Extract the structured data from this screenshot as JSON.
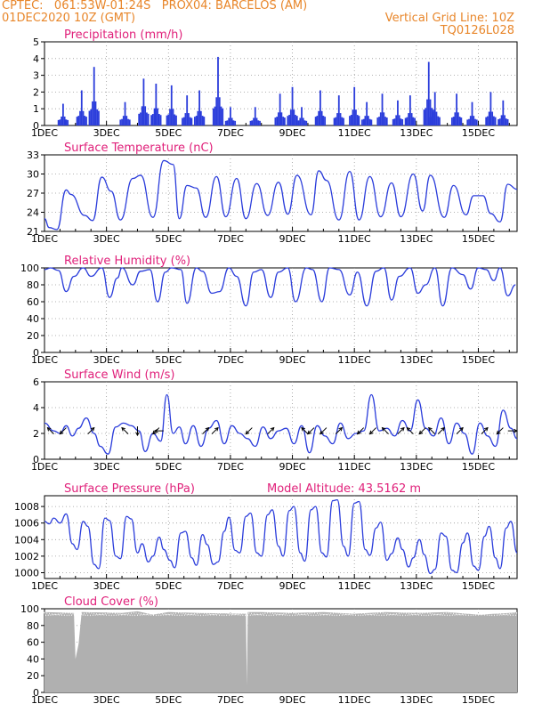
{
  "header": {
    "line1": "CPTEC:   061:53W-01:24S   PROX04: BARCELOS (AM)",
    "line2_left": "01DEC2020 10Z (GMT)",
    "line2_right": "Vertical Grid Line: 10Z",
    "line3_right": "TQ0126L028"
  },
  "colors": {
    "header": "#e8862a",
    "title": "#e0207a",
    "series": "#2b3ddb",
    "cloud": "#b0b0b0",
    "wind_arrow": "#000000"
  },
  "x_ticks": [
    "1DEC",
    "3DEC",
    "5DEC",
    "7DEC",
    "9DEC",
    "11DEC",
    "13DEC",
    "15DEC"
  ],
  "chart_data": [
    {
      "type": "bar",
      "title": "Precipitation (mm/h)",
      "ylim": [
        0,
        5
      ],
      "yticks": [
        "0",
        "1",
        "2",
        "3",
        "4",
        "5"
      ],
      "x_range_days": [
        0,
        15
      ],
      "bursts": [
        [
          0.6,
          1.3
        ],
        [
          1.2,
          2.1
        ],
        [
          1.6,
          3.5
        ],
        [
          2.6,
          1.4
        ],
        [
          3.2,
          2.8
        ],
        [
          3.6,
          2.5
        ],
        [
          4.1,
          2.4
        ],
        [
          4.6,
          1.8
        ],
        [
          5.0,
          2.1
        ],
        [
          5.6,
          4.1
        ],
        [
          6.0,
          1.1
        ],
        [
          6.8,
          1.1
        ],
        [
          7.6,
          1.9
        ],
        [
          8.0,
          2.3
        ],
        [
          8.3,
          1.1
        ],
        [
          8.9,
          2.1
        ],
        [
          9.5,
          1.8
        ],
        [
          10.0,
          2.3
        ],
        [
          10.4,
          1.4
        ],
        [
          10.9,
          1.9
        ],
        [
          11.4,
          1.5
        ],
        [
          11.8,
          1.8
        ],
        [
          12.4,
          3.8
        ],
        [
          12.6,
          2.0
        ],
        [
          13.3,
          1.9
        ],
        [
          13.8,
          1.4
        ],
        [
          14.4,
          2.0
        ],
        [
          14.8,
          1.5
        ]
      ]
    },
    {
      "type": "line",
      "title": "Surface Temperature (nC)",
      "ylim": [
        21,
        33
      ],
      "yticks": [
        "21",
        "24",
        "27",
        "30",
        "33"
      ],
      "x_days": [
        0,
        0.15,
        0.4,
        0.7,
        0.85,
        1.3,
        1.55,
        1.85,
        2.15,
        2.45,
        2.85,
        3.1,
        3.5,
        3.85,
        4.15,
        4.35,
        4.6,
        4.9,
        5.2,
        5.55,
        5.85,
        6.2,
        6.5,
        6.85,
        7.2,
        7.55,
        7.85,
        8.15,
        8.6,
        8.85,
        9.1,
        9.5,
        9.85,
        10.15,
        10.5,
        10.85,
        11.2,
        11.5,
        11.9,
        12.2,
        12.45,
        12.9,
        13.2,
        13.6,
        13.85,
        14.15,
        14.4,
        14.7,
        14.95,
        15.25
      ],
      "values": [
        23.0,
        21.6,
        21.3,
        27.5,
        26.8,
        23.5,
        22.7,
        29.5,
        27.3,
        22.8,
        29.3,
        29.8,
        23.2,
        32.1,
        31.5,
        23.0,
        28.2,
        27.8,
        23.2,
        29.6,
        23.3,
        29.3,
        23.0,
        28.5,
        23.5,
        28.7,
        23.7,
        29.8,
        23.6,
        30.5,
        29.0,
        22.8,
        30.4,
        22.8,
        29.6,
        23.3,
        28.6,
        23.3,
        30.0,
        24.2,
        29.8,
        23.2,
        28.2,
        23.6,
        26.6,
        26.6,
        23.8,
        22.5,
        28.4,
        27.6
      ]
    },
    {
      "type": "line",
      "title": "Relative Humidity (%)",
      "ylim": [
        0,
        100
      ],
      "yticks": [
        "0",
        "20",
        "40",
        "60",
        "80",
        "100"
      ],
      "x_days": [
        0,
        0.2,
        0.45,
        0.7,
        0.95,
        1.25,
        1.5,
        1.85,
        2.1,
        2.35,
        2.5,
        2.85,
        3.1,
        3.4,
        3.65,
        3.9,
        4.1,
        4.4,
        4.6,
        4.9,
        5.1,
        5.4,
        5.65,
        5.95,
        6.2,
        6.5,
        6.75,
        7.0,
        7.3,
        7.55,
        7.85,
        8.1,
        8.45,
        8.65,
        8.95,
        9.2,
        9.5,
        9.85,
        10.1,
        10.4,
        10.7,
        10.95,
        11.2,
        11.45,
        11.8,
        12.05,
        12.3,
        12.6,
        12.85,
        13.15,
        13.5,
        13.75,
        14.0,
        14.25,
        14.5,
        14.7,
        14.95,
        15.2
      ],
      "values": [
        98,
        100,
        97,
        72,
        90,
        100,
        90,
        100,
        65,
        88,
        100,
        80,
        96,
        98,
        60,
        95,
        100,
        98,
        58,
        100,
        96,
        70,
        72,
        100,
        90,
        55,
        95,
        98,
        65,
        95,
        100,
        60,
        100,
        98,
        60,
        100,
        98,
        68,
        95,
        55,
        96,
        100,
        62,
        90,
        100,
        70,
        80,
        100,
        55,
        100,
        92,
        75,
        100,
        98,
        85,
        100,
        67,
        80
      ]
    },
    {
      "type": "line",
      "title": "Surface Wind (m/s)",
      "ylim": [
        0,
        6
      ],
      "yticks": [
        "0",
        "2",
        "4",
        "6"
      ],
      "x_days": [
        0,
        0.3,
        0.5,
        0.7,
        0.9,
        1.1,
        1.35,
        1.6,
        1.8,
        2.05,
        2.3,
        2.55,
        2.8,
        3.05,
        3.25,
        3.5,
        3.75,
        3.95,
        4.15,
        4.35,
        4.55,
        4.8,
        5.05,
        5.3,
        5.55,
        5.8,
        6.05,
        6.3,
        6.55,
        6.8,
        7.05,
        7.3,
        7.55,
        7.8,
        8.05,
        8.3,
        8.55,
        8.8,
        9.05,
        9.3,
        9.55,
        9.8,
        10.05,
        10.3,
        10.55,
        10.8,
        11.05,
        11.3,
        11.55,
        11.8,
        12.05,
        12.3,
        12.55,
        12.8,
        13.05,
        13.3,
        13.55,
        13.8,
        14.05,
        14.3,
        14.55,
        14.8,
        15.05,
        15.25
      ],
      "values": [
        2.8,
        2.2,
        2.0,
        2.6,
        1.8,
        2.4,
        3.2,
        2.0,
        1.0,
        0.4,
        2.5,
        2.8,
        2.6,
        2.2,
        0.6,
        2.0,
        1.4,
        5.0,
        2.0,
        2.5,
        1.2,
        2.6,
        1.0,
        2.4,
        3.0,
        1.2,
        2.6,
        2.0,
        1.6,
        1.0,
        2.5,
        1.6,
        2.2,
        2.4,
        1.2,
        2.6,
        0.5,
        2.6,
        1.8,
        1.2,
        2.8,
        1.6,
        2.0,
        2.2,
        5.0,
        2.2,
        2.4,
        1.8,
        3.0,
        2.2,
        4.6,
        2.4,
        1.8,
        3.2,
        1.2,
        2.8,
        2.0,
        0.4,
        2.8,
        1.8,
        1.0,
        3.8,
        2.4,
        1.6
      ],
      "arrows": [
        {
          "day": 0.2,
          "dir_deg": 315
        },
        {
          "day": 0.6,
          "dir_deg": 225
        },
        {
          "day": 1.5,
          "dir_deg": 45
        },
        {
          "day": 2.6,
          "dir_deg": 315
        },
        {
          "day": 3.0,
          "dir_deg": 180
        },
        {
          "day": 3.6,
          "dir_deg": 225
        },
        {
          "day": 3.7,
          "dir_deg": 270
        },
        {
          "day": 5.2,
          "dir_deg": 45
        },
        {
          "day": 5.5,
          "dir_deg": 45
        },
        {
          "day": 6.6,
          "dir_deg": 225
        },
        {
          "day": 7.3,
          "dir_deg": 45
        },
        {
          "day": 8.4,
          "dir_deg": 315
        },
        {
          "day": 8.6,
          "dir_deg": 225
        },
        {
          "day": 9.0,
          "dir_deg": 225
        },
        {
          "day": 9.5,
          "dir_deg": 45
        },
        {
          "day": 10.2,
          "dir_deg": 225
        },
        {
          "day": 10.6,
          "dir_deg": 225
        },
        {
          "day": 11.0,
          "dir_deg": 315
        },
        {
          "day": 11.5,
          "dir_deg": 45
        },
        {
          "day": 11.8,
          "dir_deg": 315
        },
        {
          "day": 12.2,
          "dir_deg": 225
        },
        {
          "day": 12.5,
          "dir_deg": 315
        },
        {
          "day": 12.8,
          "dir_deg": 45
        },
        {
          "day": 13.4,
          "dir_deg": 45
        },
        {
          "day": 14.2,
          "dir_deg": 45
        },
        {
          "day": 14.7,
          "dir_deg": 225
        },
        {
          "day": 15.1,
          "dir_deg": 90
        }
      ]
    },
    {
      "type": "line",
      "title": "Surface Pressure (hPa)",
      "annotation": "Model Altitude:  43.5162 m",
      "ylim": [
        999.3,
        1009.3
      ],
      "yticks": [
        "1000",
        "1002",
        "1004",
        "1006",
        "1008"
      ],
      "x_days": [
        0,
        0.15,
        0.3,
        0.5,
        0.7,
        0.9,
        1.05,
        1.25,
        1.4,
        1.6,
        1.75,
        1.95,
        2.1,
        2.3,
        2.45,
        2.65,
        2.8,
        3.0,
        3.15,
        3.35,
        3.5,
        3.7,
        3.85,
        4.05,
        4.2,
        4.4,
        4.55,
        4.75,
        4.9,
        5.1,
        5.25,
        5.45,
        5.6,
        5.8,
        5.95,
        6.15,
        6.3,
        6.5,
        6.65,
        6.85,
        7.0,
        7.2,
        7.35,
        7.55,
        7.7,
        7.9,
        8.05,
        8.25,
        8.4,
        8.6,
        8.75,
        8.95,
        9.1,
        9.3,
        9.45,
        9.65,
        9.8,
        10.0,
        10.15,
        10.35,
        10.5,
        10.7,
        10.85,
        11.05,
        11.2,
        11.4,
        11.55,
        11.75,
        11.9,
        12.1,
        12.25,
        12.45,
        12.6,
        12.8,
        12.95,
        13.15,
        13.3,
        13.5,
        13.65,
        13.85,
        14.0,
        14.2,
        14.35,
        14.55,
        14.7,
        14.9,
        15.05,
        15.25
      ],
      "values": [
        1006.2,
        1005.9,
        1006.6,
        1006.0,
        1007.1,
        1003.5,
        1002.8,
        1006.2,
        1005.6,
        1001.0,
        1000.5,
        1006.6,
        1006.3,
        1002.0,
        1001.7,
        1006.8,
        1006.5,
        1002.4,
        1003.5,
        1001.3,
        1002.0,
        1004.3,
        1002.8,
        1001.5,
        1000.6,
        1004.8,
        1005.0,
        1001.8,
        1000.9,
        1004.6,
        1003.4,
        1001.0,
        1001.3,
        1005.0,
        1006.7,
        1002.7,
        1002.4,
        1006.8,
        1007.2,
        1002.4,
        1002.0,
        1007.0,
        1007.6,
        1003.2,
        1002.0,
        1007.5,
        1008.0,
        1002.4,
        1001.4,
        1007.6,
        1008.0,
        1002.4,
        1001.9,
        1008.7,
        1008.8,
        1003.2,
        1002.0,
        1008.4,
        1008.6,
        1002.8,
        1002.1,
        1005.4,
        1006.1,
        1001.5,
        1002.3,
        1004.2,
        1002.8,
        1000.7,
        1001.8,
        1004.0,
        1002.2,
        999.9,
        1000.4,
        1004.8,
        1004.4,
        1000.3,
        1000.0,
        1003.6,
        1004.8,
        1000.8,
        1000.3,
        1004.4,
        1005.6,
        1001.8,
        1000.5,
        1005.4,
        1006.2,
        1002.4
      ]
    },
    {
      "type": "area",
      "title": "Cloud Cover (%)",
      "ylim": [
        0,
        100
      ],
      "yticks": [
        "0",
        "20",
        "40",
        "60",
        "80",
        "100"
      ],
      "baseline_percent": 96,
      "x_days": [
        0,
        0.95,
        1.0,
        1.1,
        1.2,
        2.5,
        3.0,
        3.5,
        4.0,
        5.0,
        6.5,
        6.53,
        6.56,
        7.0,
        8.0,
        9.0,
        10.0,
        11.0,
        12.0,
        13.0,
        14.0,
        15.0,
        15.25
      ],
      "values": [
        96,
        95,
        40,
        58,
        96,
        95,
        97,
        93,
        96,
        95,
        94,
        8,
        96,
        96,
        95,
        96,
        94,
        96,
        95,
        96,
        93,
        95,
        96
      ]
    }
  ]
}
